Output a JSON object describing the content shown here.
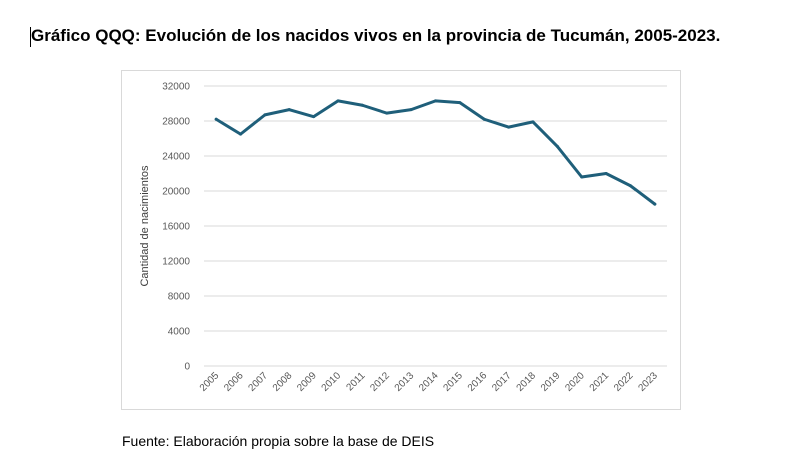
{
  "document": {
    "title": "Gráfico QQQ: Evolución de los nacidos vivos en la provincia de Tucumán, 2005-2023.",
    "source": "Fuente: Elaboración propia sobre la base de DEIS"
  },
  "chart_data": {
    "type": "line",
    "title": "",
    "xlabel": "",
    "ylabel": "Cantidad de nacimientos",
    "categories": [
      "2005",
      "2006",
      "2007",
      "2008",
      "2009",
      "2010",
      "2011",
      "2012",
      "2013",
      "2014",
      "2015",
      "2016",
      "2017",
      "2018",
      "2019",
      "2020",
      "2021",
      "2022",
      "2023"
    ],
    "series": [
      {
        "values": [
          28200,
          26500,
          28700,
          29300,
          28500,
          30300,
          29800,
          28900,
          29300,
          30300,
          30100,
          28200,
          27300,
          27900,
          25100,
          21600,
          22000,
          20600,
          18500
        ],
        "color": "#1f5f7a"
      }
    ],
    "ylim": [
      0,
      32000
    ],
    "yticks": [
      "0",
      "4000",
      "8000",
      "12000",
      "16000",
      "20000",
      "24000",
      "28000",
      "32000"
    ],
    "grid": true,
    "legend": "none"
  }
}
